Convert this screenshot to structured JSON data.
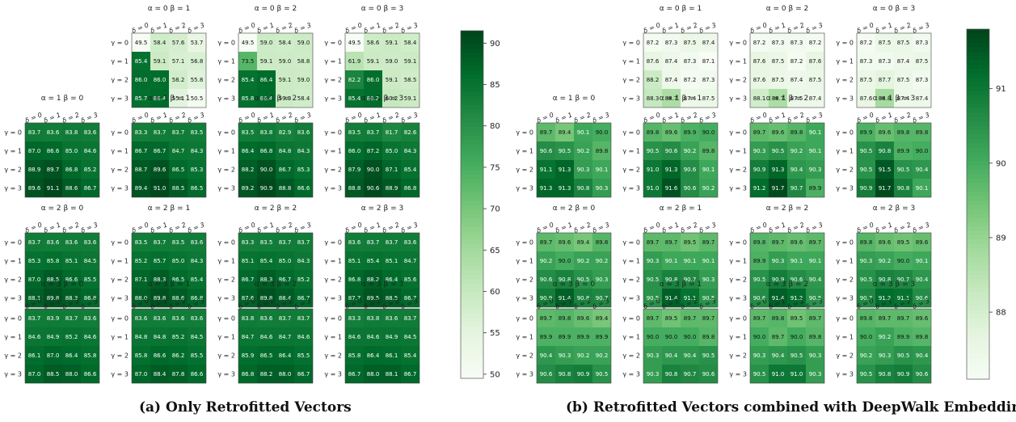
{
  "panels": [
    {
      "caption": "(a) Only Retrofitted Vectors",
      "colorbar": {
        "ticks": [
          "50",
          "55",
          "60",
          "65",
          "70",
          "75",
          "80",
          "85",
          "90"
        ],
        "range": [
          49.5,
          91.5
        ]
      }
    },
    {
      "caption": "(b) Retrofitted Vectors combined with DeepWalk Embeddings",
      "colorbar": {
        "ticks": [
          "88",
          "89",
          "90",
          "91"
        ],
        "range": [
          87.1,
          91.8
        ]
      }
    }
  ],
  "chart_data": [
    {
      "type": "heatmap",
      "title": "",
      "col_labels": [
        "δ = 0",
        "δ = 1",
        "δ = 2",
        "δ = 3"
      ],
      "row_labels": [
        "γ = 0",
        "γ = 1",
        "γ = 2",
        "γ = 3"
      ],
      "colormap": "Greens",
      "colors": {
        "low": "#f7fcf5",
        "high": "#00441b"
      },
      "subplots": [
        {
          "title": "α = 0 β = 1",
          "values": [
            [
              49.5,
              58.4,
              57.6,
              53.7
            ],
            [
              85.4,
              59.1,
              57.1,
              56.8
            ],
            [
              86.0,
              86.0,
              58.2,
              55.8
            ],
            [
              85.7,
              86.4,
              55.1,
              50.5
            ]
          ]
        },
        {
          "title": "α = 0 β = 2",
          "values": [
            [
              49.5,
              59.0,
              58.4,
              59.0
            ],
            [
              73.5,
              59.1,
              59.0,
              58.8
            ],
            [
              85.4,
              86.4,
              59.1,
              59.0
            ],
            [
              85.8,
              86.4,
              59.3,
              58.4
            ]
          ]
        },
        {
          "title": "α = 0 β = 3",
          "values": [
            [
              49.5,
              58.6,
              59.1,
              58.4
            ],
            [
              61.9,
              59.1,
              59.0,
              59.1
            ],
            [
              82.2,
              86.0,
              59.1,
              58.5
            ],
            [
              85.4,
              86.2,
              60.2,
              59.1
            ]
          ]
        },
        {
          "title": "α = 1 β = 0",
          "values": [
            [
              83.7,
              83.6,
              83.8,
              83.6
            ],
            [
              87.0,
              86.6,
              85.0,
              84.6
            ],
            [
              88.9,
              89.7,
              86.8,
              85.2
            ],
            [
              89.6,
              91.1,
              88.6,
              86.7
            ]
          ]
        },
        {
          "title": "α = 1 β = 1",
          "values": [
            [
              83.3,
              83.7,
              83.7,
              83.5
            ],
            [
              86.7,
              86.7,
              84.7,
              84.3
            ],
            [
              88.7,
              89.6,
              86.5,
              85.3
            ],
            [
              89.4,
              91.0,
              88.5,
              86.5
            ]
          ]
        },
        {
          "title": "α = 1 β = 2",
          "values": [
            [
              83.5,
              83.8,
              82.9,
              83.6
            ],
            [
              86.4,
              86.8,
              84.8,
              84.3
            ],
            [
              88.2,
              90.0,
              86.7,
              85.3
            ],
            [
              89.2,
              90.9,
              88.8,
              86.6
            ]
          ]
        },
        {
          "title": "α = 1 β = 3",
          "values": [
            [
              83.5,
              83.7,
              81.7,
              82.6
            ],
            [
              86.0,
              87.2,
              85.0,
              84.3
            ],
            [
              87.9,
              90.0,
              87.1,
              85.4
            ],
            [
              88.8,
              90.6,
              88.9,
              86.8
            ]
          ]
        },
        {
          "title": "α = 2 β = 0",
          "values": [
            [
              83.7,
              83.6,
              83.6,
              83.6
            ],
            [
              85.3,
              85.8,
              85.1,
              84.5
            ],
            [
              87.0,
              88.5,
              86.6,
              85.5
            ],
            [
              88.1,
              89.8,
              88.3,
              86.8
            ]
          ]
        },
        {
          "title": "α = 2 β = 1",
          "values": [
            [
              83.5,
              83.7,
              83.5,
              83.6
            ],
            [
              85.2,
              85.7,
              85.0,
              84.3
            ],
            [
              87.1,
              88.3,
              86.5,
              85.4
            ],
            [
              88.0,
              89.8,
              88.6,
              86.8
            ]
          ]
        },
        {
          "title": "α = 2 β = 2",
          "values": [
            [
              83.3,
              83.5,
              83.7,
              83.7
            ],
            [
              85.1,
              85.4,
              85.0,
              84.3
            ],
            [
              86.7,
              88.3,
              86.7,
              85.2
            ],
            [
              87.6,
              89.8,
              88.4,
              86.7
            ]
          ]
        },
        {
          "title": "α = 2 β = 3",
          "values": [
            [
              83.6,
              83.7,
              83.7,
              83.6
            ],
            [
              85.1,
              85.4,
              85.1,
              84.7
            ],
            [
              86.8,
              88.2,
              86.4,
              85.6
            ],
            [
              87.7,
              89.5,
              88.5,
              86.7
            ]
          ]
        },
        {
          "title": "α = 3 β = 0",
          "values": [
            [
              83.7,
              83.9,
              83.7,
              83.6
            ],
            [
              84.6,
              84.9,
              85.2,
              84.6
            ],
            [
              86.1,
              87.0,
              86.4,
              85.8
            ],
            [
              87.0,
              88.5,
              88.0,
              86.6
            ]
          ]
        },
        {
          "title": "α = 3 β = 1",
          "values": [
            [
              83.6,
              83.6,
              83.6,
              83.6
            ],
            [
              84.8,
              84.8,
              85.2,
              84.5
            ],
            [
              85.8,
              86.6,
              86.2,
              85.5
            ],
            [
              87.0,
              88.4,
              87.8,
              86.6
            ]
          ]
        },
        {
          "title": "α = 3 β = 2",
          "values": [
            [
              83.8,
              83.6,
              83.7,
              83.7
            ],
            [
              84.7,
              84.6,
              84.7,
              84.6
            ],
            [
              85.9,
              86.5,
              86.4,
              85.5
            ],
            [
              86.8,
              88.2,
              88.0,
              86.7
            ]
          ]
        },
        {
          "title": "α = 3 β = 3",
          "values": [
            [
              83.3,
              83.8,
              83.6,
              83.7
            ],
            [
              84.6,
              84.6,
              84.9,
              84.5
            ],
            [
              85.8,
              86.4,
              86.1,
              85.4
            ],
            [
              86.7,
              88.0,
              88.1,
              86.7
            ]
          ]
        }
      ]
    },
    {
      "type": "heatmap",
      "title": "",
      "col_labels": [
        "δ = 0",
        "δ = 1",
        "δ = 2",
        "δ = 3"
      ],
      "row_labels": [
        "γ = 0",
        "γ = 1",
        "γ = 2",
        "γ = 3"
      ],
      "colormap": "Greens",
      "colors": {
        "low": "#f7fcf5",
        "high": "#00441b"
      },
      "subplots": [
        {
          "title": "α = 0 β = 1",
          "values": [
            [
              87.2,
              87.3,
              87.5,
              87.4
            ],
            [
              87.6,
              87.4,
              87.3,
              87.1
            ],
            [
              88.2,
              87.4,
              87.2,
              87.3
            ],
            [
              88.3,
              88.7,
              87.4,
              87.5
            ]
          ]
        },
        {
          "title": "α = 0 β = 2",
          "values": [
            [
              87.2,
              87.3,
              87.3,
              87.2
            ],
            [
              87.6,
              87.5,
              87.2,
              87.6
            ],
            [
              87.6,
              87.5,
              87.4,
              87.5
            ],
            [
              88.1,
              88.7,
              87.5,
              87.4
            ]
          ]
        },
        {
          "title": "α = 0 β = 3",
          "values": [
            [
              87.2,
              87.5,
              87.5,
              87.3
            ],
            [
              87.3,
              87.3,
              87.4,
              87.5
            ],
            [
              87.5,
              87.7,
              87.5,
              87.3
            ],
            [
              87.6,
              88.8,
              87.4,
              87.4
            ]
          ]
        },
        {
          "title": "α = 1 β = 0",
          "values": [
            [
              89.7,
              89.4,
              90.1,
              90.0
            ],
            [
              90.6,
              90.5,
              90.2,
              89.8
            ],
            [
              91.1,
              91.3,
              90.3,
              90.1
            ],
            [
              91.3,
              91.3,
              90.8,
              90.3
            ]
          ]
        },
        {
          "title": "α = 1 β = 1",
          "values": [
            [
              89.8,
              89.6,
              89.9,
              90.0
            ],
            [
              90.5,
              90.6,
              90.2,
              89.8
            ],
            [
              91.0,
              91.3,
              90.6,
              90.1
            ],
            [
              91.0,
              91.6,
              90.6,
              90.2
            ]
          ]
        },
        {
          "title": "α = 1 β = 2",
          "values": [
            [
              89.7,
              89.6,
              89.8,
              90.1
            ],
            [
              90.3,
              90.5,
              90.2,
              90.1
            ],
            [
              90.9,
              91.3,
              90.4,
              90.3
            ],
            [
              91.2,
              91.7,
              90.7,
              89.9
            ]
          ]
        },
        {
          "title": "α = 1 β = 3",
          "values": [
            [
              89.9,
              89.6,
              89.8,
              89.8
            ],
            [
              90.5,
              90.8,
              89.9,
              90.0
            ],
            [
              90.5,
              91.5,
              90.5,
              90.4
            ],
            [
              90.9,
              91.7,
              90.8,
              90.1
            ]
          ]
        },
        {
          "title": "α = 2 β = 0",
          "values": [
            [
              89.7,
              89.6,
              89.4,
              89.8
            ],
            [
              90.2,
              90.0,
              90.2,
              90.2
            ],
            [
              90.6,
              90.8,
              90.5,
              90.3
            ],
            [
              90.9,
              91.4,
              90.8,
              90.7
            ]
          ]
        },
        {
          "title": "α = 2 β = 1",
          "values": [
            [
              89.7,
              89.7,
              89.5,
              89.7
            ],
            [
              90.3,
              90.1,
              90.1,
              90.1
            ],
            [
              90.5,
              90.8,
              90.7,
              90.3
            ],
            [
              90.5,
              91.4,
              91.1,
              90.5
            ]
          ]
        },
        {
          "title": "α = 2 β = 2",
          "values": [
            [
              89.8,
              89.7,
              89.6,
              89.7
            ],
            [
              89.9,
              90.3,
              90.1,
              90.1
            ],
            [
              90.5,
              90.9,
              90.6,
              90.4
            ],
            [
              90.6,
              91.4,
              91.2,
              90.5
            ]
          ]
        },
        {
          "title": "α = 2 β = 3",
          "values": [
            [
              89.8,
              89.6,
              89.5,
              89.6
            ],
            [
              90.3,
              90.2,
              90.0,
              90.1
            ],
            [
              90.5,
              90.8,
              90.7,
              90.4
            ],
            [
              90.7,
              91.2,
              91.1,
              90.6
            ]
          ]
        },
        {
          "title": "α = 3 β = 0",
          "values": [
            [
              89.7,
              89.8,
              89.6,
              89.4
            ],
            [
              89.9,
              89.9,
              89.9,
              89.9
            ],
            [
              90.4,
              90.3,
              90.2,
              90.2
            ],
            [
              90.6,
              90.8,
              90.9,
              90.5
            ]
          ]
        },
        {
          "title": "α = 3 β = 1",
          "values": [
            [
              89.7,
              89.5,
              89.7,
              89.7
            ],
            [
              90.0,
              90.0,
              90.0,
              89.8
            ],
            [
              90.3,
              90.4,
              90.4,
              90.5
            ],
            [
              90.3,
              90.8,
              90.7,
              90.6
            ]
          ]
        },
        {
          "title": "α = 3 β = 2",
          "values": [
            [
              89.7,
              89.8,
              89.5,
              89.7
            ],
            [
              90.0,
              89.7,
              90.0,
              89.8
            ],
            [
              90.3,
              90.4,
              90.5,
              90.3
            ],
            [
              90.5,
              91.0,
              91.0,
              90.3
            ]
          ]
        },
        {
          "title": "α = 3 β = 3",
          "values": [
            [
              89.8,
              89.7,
              89.7,
              89.6
            ],
            [
              90.0,
              90.2,
              89.9,
              89.8
            ],
            [
              90.2,
              90.3,
              90.5,
              90.4
            ],
            [
              90.5,
              90.8,
              90.9,
              90.6
            ]
          ]
        }
      ]
    }
  ]
}
